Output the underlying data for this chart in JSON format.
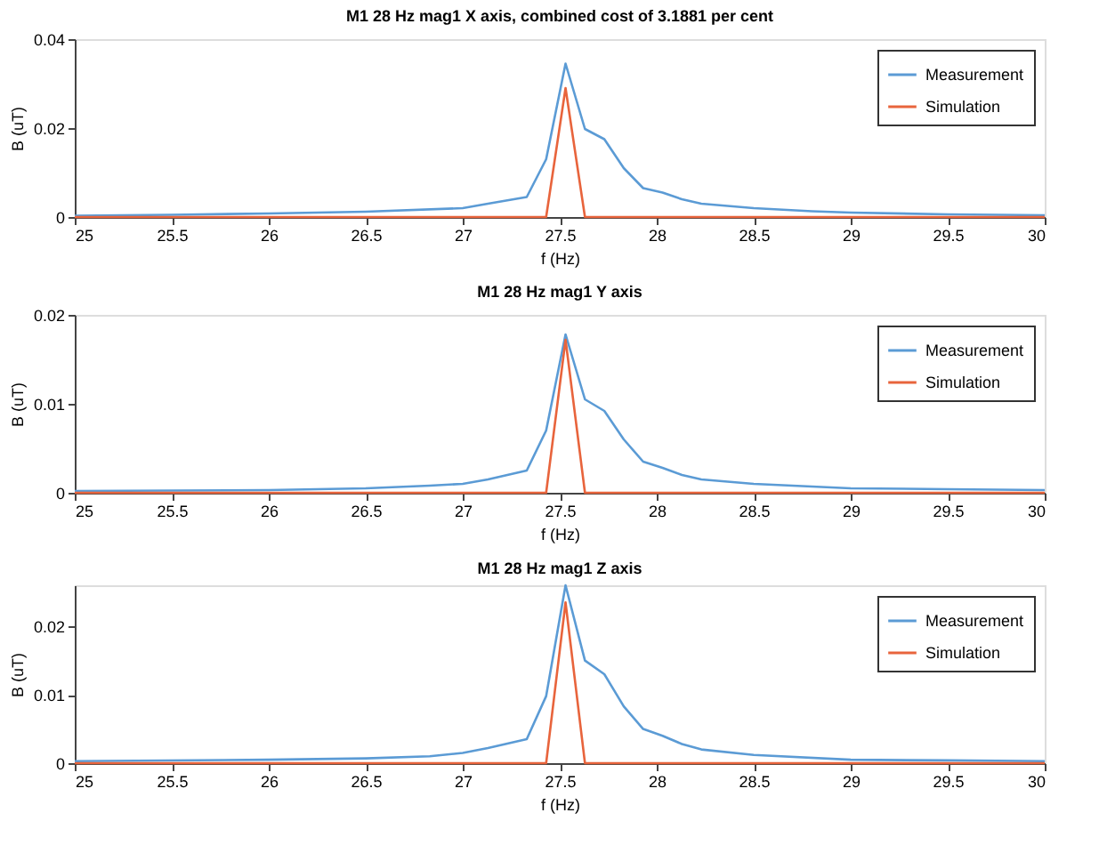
{
  "chart_data": [
    {
      "type": "line",
      "title": "M1 28 Hz mag1 X axis, combined cost of 3.1881 per cent",
      "xlabel": "f (Hz)",
      "ylabel": "B (uT)",
      "xlim": [
        25,
        30
      ],
      "xticks": [
        25,
        25.5,
        26,
        26.5,
        27,
        27.5,
        28,
        28.5,
        29,
        29.5,
        30
      ],
      "ylim": [
        0,
        0.04
      ],
      "yticks": [
        0,
        0.02,
        0.04
      ],
      "grid": false,
      "legend": "top right",
      "marker": "none",
      "line_style": "solid",
      "series": [
        {
          "name": "Measurement",
          "color": "#5b9bd5",
          "x": [
            25,
            25.5,
            26,
            26.5,
            27,
            27.13,
            27.33,
            27.43,
            27.53,
            27.63,
            27.73,
            27.83,
            27.93,
            28.03,
            28.13,
            28.23,
            28.5,
            28.8,
            29,
            29.5,
            30
          ],
          "values": [
            0.0003,
            0.0005,
            0.0008,
            0.0012,
            0.002,
            0.003,
            0.0045,
            0.013,
            0.0345,
            0.0198,
            0.0175,
            0.011,
            0.0065,
            0.0055,
            0.004,
            0.003,
            0.002,
            0.0013,
            0.001,
            0.0006,
            0.0004
          ]
        },
        {
          "name": "Simulation",
          "color": "#e8643c",
          "x": [
            25,
            27.43,
            27.53,
            27.63,
            30
          ],
          "values": [
            0,
            0,
            0.029,
            0,
            0
          ]
        }
      ]
    },
    {
      "type": "line",
      "title": "M1 28 Hz mag1 Y axis",
      "xlabel": "f (Hz)",
      "ylabel": "B (uT)",
      "xlim": [
        25,
        30
      ],
      "xticks": [
        25,
        25.5,
        26,
        26.5,
        27,
        27.5,
        28,
        28.5,
        29,
        29.5,
        30
      ],
      "ylim": [
        0,
        0.02
      ],
      "yticks": [
        0,
        0.01,
        0.02
      ],
      "grid": false,
      "legend": "top right",
      "marker": "none",
      "line_style": "solid",
      "series": [
        {
          "name": "Measurement",
          "color": "#5b9bd5",
          "x": [
            25,
            26,
            26.5,
            26.83,
            27,
            27.13,
            27.33,
            27.43,
            27.53,
            27.63,
            27.73,
            27.83,
            27.93,
            28.03,
            28.13,
            28.23,
            28.5,
            29,
            29.5,
            30
          ],
          "values": [
            0.0002,
            0.0003,
            0.0005,
            0.0008,
            0.001,
            0.0015,
            0.0025,
            0.007,
            0.0178,
            0.0105,
            0.0092,
            0.006,
            0.0035,
            0.0028,
            0.002,
            0.0015,
            0.001,
            0.0005,
            0.0004,
            0.0003
          ]
        },
        {
          "name": "Simulation",
          "color": "#e8643c",
          "x": [
            25,
            27.43,
            27.53,
            27.63,
            30
          ],
          "values": [
            0,
            0,
            0.0172,
            0,
            0
          ]
        }
      ]
    },
    {
      "type": "line",
      "title": "M1 28 Hz mag1 Z axis",
      "xlabel": "f (Hz)",
      "ylabel": "B (uT)",
      "xlim": [
        25,
        30
      ],
      "xticks": [
        25,
        25.5,
        26,
        26.5,
        27,
        27.5,
        28,
        28.5,
        29,
        29.5,
        30
      ],
      "ylim": [
        0,
        0.026
      ],
      "yticks": [
        0,
        0.01,
        0.02
      ],
      "grid": false,
      "legend": "top right",
      "marker": "none",
      "line_style": "solid",
      "series": [
        {
          "name": "Measurement",
          "color": "#5b9bd5",
          "x": [
            25,
            26,
            26.5,
            26.83,
            27,
            27.13,
            27.33,
            27.43,
            27.53,
            27.63,
            27.73,
            27.83,
            27.93,
            28.03,
            28.13,
            28.23,
            28.5,
            29,
            29.5,
            30
          ],
          "values": [
            0.0003,
            0.0005,
            0.0007,
            0.001,
            0.0015,
            0.0022,
            0.0035,
            0.0098,
            0.026,
            0.015,
            0.013,
            0.0083,
            0.005,
            0.004,
            0.0028,
            0.002,
            0.0012,
            0.0005,
            0.0004,
            0.0003
          ]
        },
        {
          "name": "Simulation",
          "color": "#e8643c",
          "x": [
            25,
            27.43,
            27.53,
            27.63,
            30
          ],
          "values": [
            0,
            0,
            0.0235,
            0,
            0
          ]
        }
      ]
    }
  ]
}
